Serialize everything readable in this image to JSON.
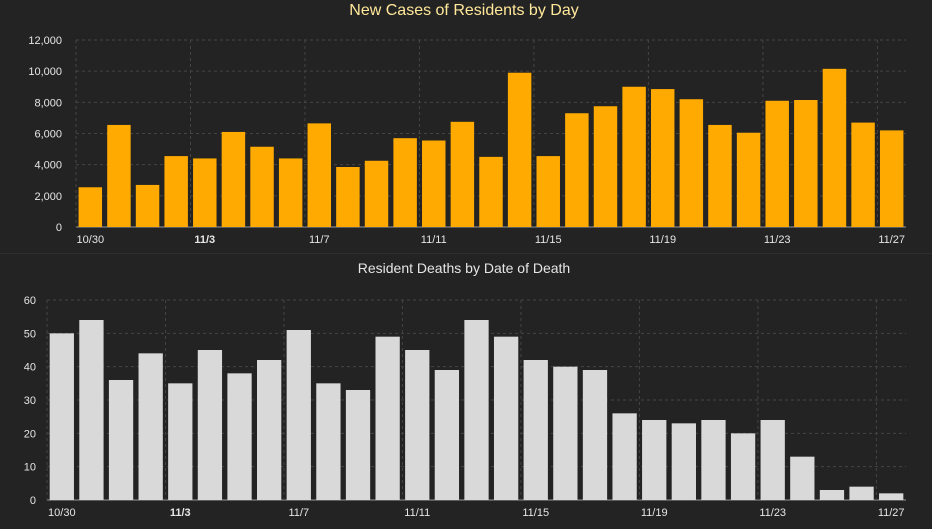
{
  "chart_data": [
    {
      "type": "bar",
      "title": "New Cases of Residents by Day",
      "xlabel": "",
      "ylabel": "",
      "ylim": [
        0,
        12000
      ],
      "yticks": [
        "0",
        "2,000",
        "4,000",
        "6,000",
        "8,000",
        "10,000",
        "12,000"
      ],
      "ytick_values": [
        0,
        2000,
        4000,
        6000,
        8000,
        10000,
        12000
      ],
      "xtick_labels": [
        {
          "index": 0,
          "label": "10/30"
        },
        {
          "index": 4,
          "label": "11/3"
        },
        {
          "index": 8,
          "label": "11/7"
        },
        {
          "index": 12,
          "label": "11/11"
        },
        {
          "index": 16,
          "label": "11/15"
        },
        {
          "index": 20,
          "label": "11/19"
        },
        {
          "index": 24,
          "label": "11/23"
        },
        {
          "index": 28,
          "label": "11/27"
        }
      ],
      "categories": [
        "10/30",
        "10/31",
        "11/1",
        "11/2",
        "11/3",
        "11/4",
        "11/5",
        "11/6",
        "11/7",
        "11/8",
        "11/9",
        "11/10",
        "11/11",
        "11/12",
        "11/13",
        "11/14",
        "11/15",
        "11/16",
        "11/17",
        "11/18",
        "11/19",
        "11/20",
        "11/21",
        "11/22",
        "11/23",
        "11/24",
        "11/25",
        "11/26",
        "11/27"
      ],
      "values": [
        2550,
        6550,
        2700,
        4550,
        4400,
        6100,
        5150,
        4400,
        6650,
        3850,
        4250,
        5700,
        5550,
        6750,
        4500,
        9900,
        4550,
        7300,
        7750,
        9000,
        8850,
        8200,
        6550,
        6050,
        8100,
        8150,
        10150,
        6700,
        6200
      ],
      "bar_color": "#ffaa00",
      "grid": true
    },
    {
      "type": "bar",
      "title": "Resident Deaths by Date of Death",
      "xlabel": "",
      "ylabel": "",
      "ylim": [
        0,
        60
      ],
      "yticks": [
        "0",
        "10",
        "20",
        "30",
        "40",
        "50",
        "60"
      ],
      "ytick_values": [
        0,
        10,
        20,
        30,
        40,
        50,
        60
      ],
      "xtick_labels": [
        {
          "index": 0,
          "label": "10/30"
        },
        {
          "index": 4,
          "label": "11/3"
        },
        {
          "index": 8,
          "label": "11/7"
        },
        {
          "index": 12,
          "label": "11/11"
        },
        {
          "index": 16,
          "label": "11/15"
        },
        {
          "index": 20,
          "label": "11/19"
        },
        {
          "index": 24,
          "label": "11/23"
        },
        {
          "index": 28,
          "label": "11/27"
        }
      ],
      "categories": [
        "10/30",
        "10/31",
        "11/1",
        "11/2",
        "11/3",
        "11/4",
        "11/5",
        "11/6",
        "11/7",
        "11/8",
        "11/9",
        "11/10",
        "11/11",
        "11/12",
        "11/13",
        "11/14",
        "11/15",
        "11/16",
        "11/17",
        "11/18",
        "11/19",
        "11/20",
        "11/21",
        "11/22",
        "11/23",
        "11/24",
        "11/25",
        "11/26",
        "11/27"
      ],
      "values": [
        50,
        54,
        36,
        44,
        35,
        45,
        38,
        42,
        51,
        35,
        33,
        49,
        45,
        39,
        54,
        49,
        42,
        40,
        39,
        26,
        24,
        23,
        24,
        20,
        24,
        13,
        3,
        4,
        2
      ],
      "bar_color": "#d9d9d9",
      "grid": true
    }
  ]
}
